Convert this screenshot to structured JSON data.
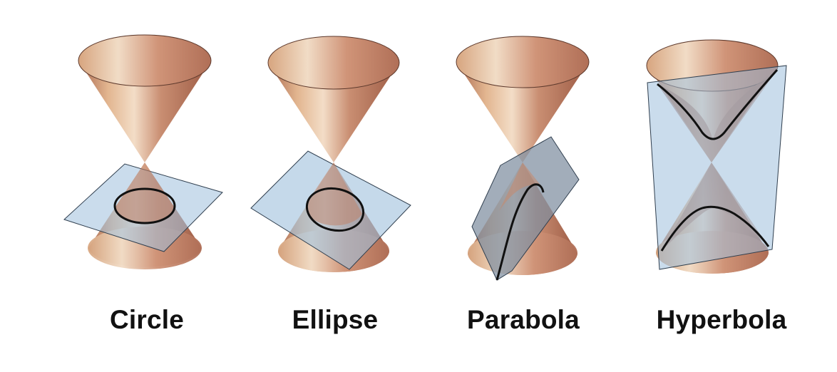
{
  "sections": [
    {
      "id": "circle",
      "label": "Circle"
    },
    {
      "id": "ellipse",
      "label": "Ellipse"
    },
    {
      "id": "parabola",
      "label": "Parabola"
    },
    {
      "id": "hyperbola",
      "label": "Hyperbola"
    }
  ],
  "colors": {
    "cone_dark": "#a9684f",
    "cone_light": "#f3ddc7",
    "cone_mid": "#c98e72",
    "cone_warm": "#e2b58f",
    "plane_fill": "#9fbfdc",
    "plane_stroke": "#2f3e4e",
    "curve": "#111111"
  }
}
